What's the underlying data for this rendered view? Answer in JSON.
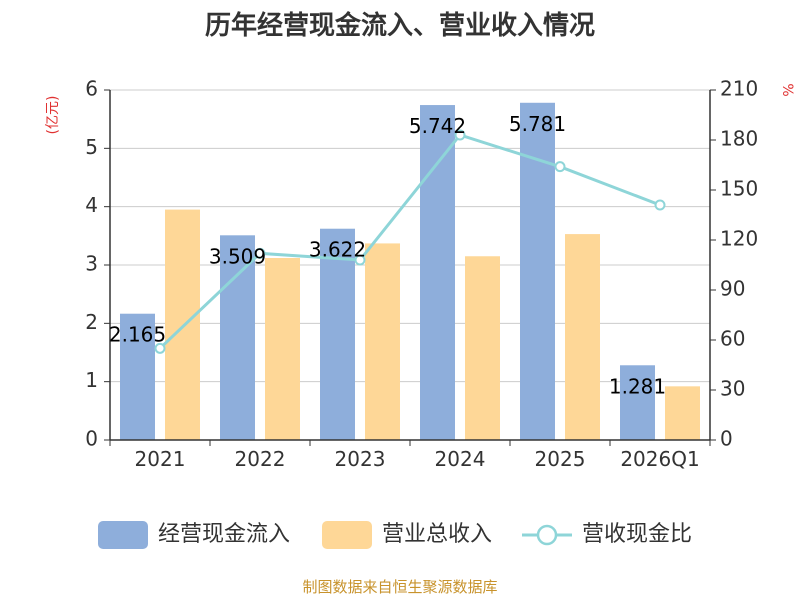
{
  "chart_data": {
    "type": "bar",
    "title": "历年经营现金流入、营业收入情况",
    "categories": [
      "2021",
      "2022",
      "2023",
      "2024",
      "2025",
      "2026Q1"
    ],
    "y_left": {
      "unit": "(亿元)",
      "min": 0,
      "max": 6,
      "ticks": [
        "0",
        "1",
        "2",
        "3",
        "4",
        "5",
        "6"
      ]
    },
    "y_right": {
      "unit": "%",
      "min": 0,
      "max": 210,
      "ticks": [
        "0",
        "30",
        "60",
        "90",
        "120",
        "150",
        "180",
        "210"
      ]
    },
    "grid": true,
    "legend_position": "bottom",
    "series": [
      {
        "name": "经营现金流入",
        "kind": "bar",
        "axis": "left",
        "color": "#8eaedb",
        "values": [
          2.165,
          3.509,
          3.622,
          5.742,
          5.781,
          1.281
        ],
        "labels": [
          "2.165",
          "3.509",
          "3.622",
          "5.742",
          "5.781",
          "1.281"
        ]
      },
      {
        "name": "营业总收入",
        "kind": "bar",
        "axis": "left",
        "color": "#fed797",
        "values": [
          3.95,
          3.12,
          3.37,
          3.15,
          3.53,
          0.92
        ]
      },
      {
        "name": "营收现金比",
        "kind": "line",
        "axis": "right",
        "color": "#8ed5d8",
        "values": [
          55,
          112,
          108,
          183,
          164,
          141
        ]
      }
    ],
    "source": "制图数据来自恒生聚源数据库"
  }
}
